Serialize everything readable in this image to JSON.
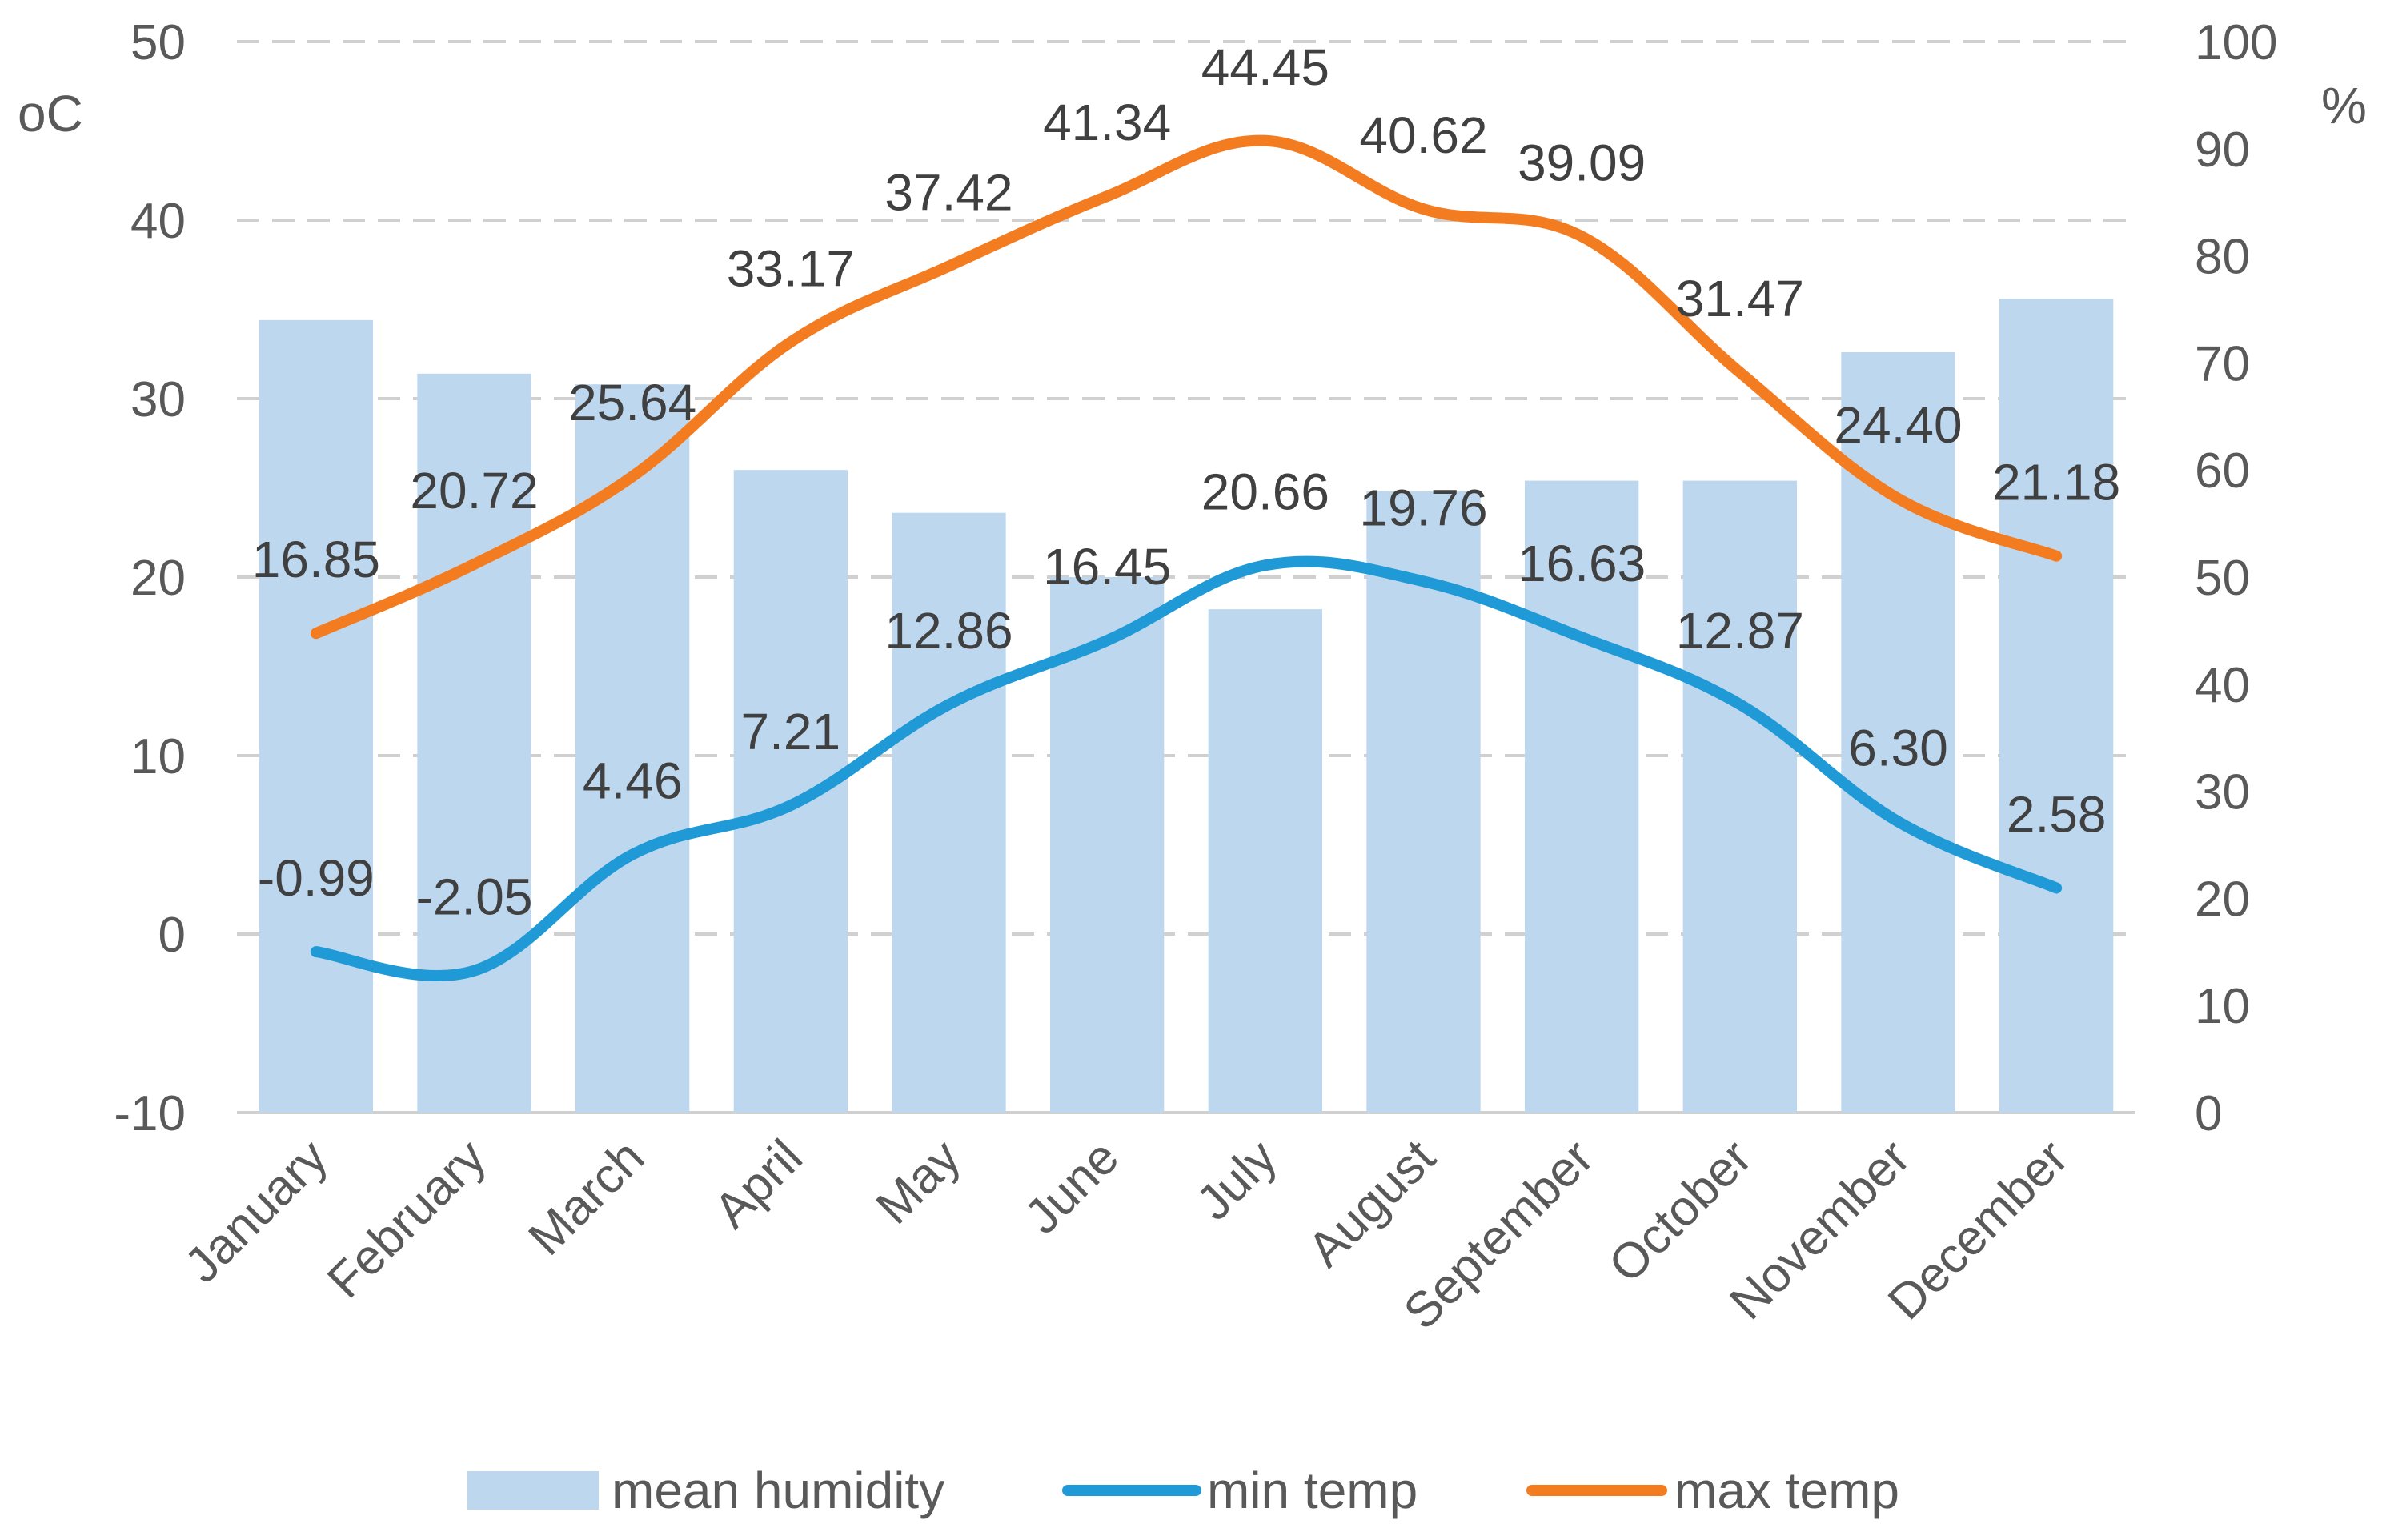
{
  "chart_data": {
    "type": "bar",
    "categories": [
      "January",
      "February",
      "March",
      "April",
      "May",
      "June",
      "July",
      "August",
      "September",
      "October",
      "November",
      "December"
    ],
    "left_axis": {
      "unit": "oC",
      "ticks": [
        "50",
        "40",
        "30",
        "20",
        "10",
        "0",
        "-10"
      ],
      "range": [
        -10,
        50
      ]
    },
    "right_axis": {
      "unit": "%",
      "ticks": [
        "100",
        "90",
        "80",
        "70",
        "60",
        "50",
        "40",
        "30",
        "20",
        "10",
        "0"
      ],
      "range": [
        0,
        100
      ]
    },
    "grid": "dashed horizontal",
    "legend_position": "bottom",
    "series": [
      {
        "name": "mean humidity",
        "type": "bar",
        "axis": "right",
        "color": "#bdd7ee",
        "values": [
          74,
          69,
          68,
          60,
          56,
          50,
          47,
          58,
          59,
          59,
          71,
          76
        ]
      },
      {
        "name": "min temp",
        "type": "line",
        "axis": "left",
        "color": "#1f9ad6",
        "values": [
          -0.99,
          -2.05,
          4.46,
          7.21,
          12.86,
          16.45,
          20.66,
          19.76,
          16.63,
          12.87,
          6.3,
          2.58
        ],
        "labels": [
          "-0.99",
          "-2.05",
          "4.46",
          "7.21",
          "12.86",
          "16.45",
          "20.66",
          "19.76",
          "16.63",
          "12.87",
          "6.30",
          "2.58"
        ]
      },
      {
        "name": "max temp",
        "type": "line",
        "axis": "left",
        "color": "#f47c20",
        "values": [
          16.85,
          20.72,
          25.64,
          33.17,
          37.42,
          41.34,
          44.45,
          40.62,
          39.09,
          31.47,
          24.4,
          21.18
        ],
        "labels": [
          "16.85",
          "20.72",
          "25.64",
          "33.17",
          "37.42",
          "41.34",
          "44.45",
          "40.62",
          "39.09",
          "31.47",
          "24.40",
          "21.18"
        ]
      }
    ]
  }
}
